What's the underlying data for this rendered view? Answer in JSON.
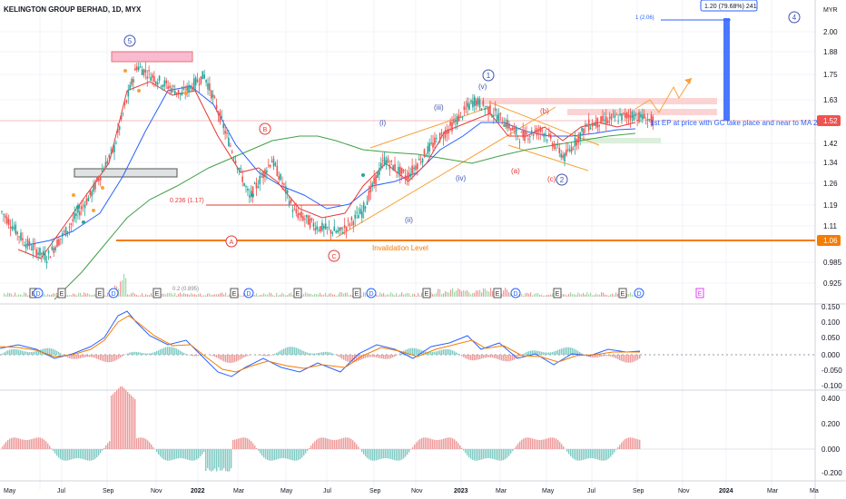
{
  "header": {
    "title": "KELINGTON GROUP BERHAD, 1D, MYX",
    "currency": "MYR"
  },
  "price_axis": {
    "ticks": [
      "2.00",
      "1.88",
      "1.75",
      "1.63",
      "1.52",
      "1.42",
      "1.34",
      "1.26",
      "1.19",
      "1.11",
      "0.985",
      "0.925"
    ],
    "current": "1.52",
    "invalidation": "1.06"
  },
  "time_axis": [
    "May",
    "Jul",
    "Sep",
    "Nov",
    "2022",
    "Mar",
    "May",
    "Jul",
    "Sep",
    "Nov",
    "2023",
    "Mar",
    "May",
    "Jul",
    "Sep",
    "Nov",
    "2024",
    "Mar",
    "Ma"
  ],
  "macd_axis": [
    "0.150",
    "0.100",
    "0.050",
    "0.000",
    "-0.050",
    "-0.100"
  ],
  "hist_axis": [
    "0.400",
    "0.200",
    "0.000",
    "-0.200"
  ],
  "annotations": {
    "wave5": "5",
    "wave4": "4",
    "wave1": "1",
    "wave2": "2",
    "waveA": "A",
    "waveB": "B",
    "waveC": "C",
    "sub_i": "(i)",
    "sub_ii": "(ii)",
    "sub_iii": "(iii)",
    "sub_iv": "(iv)",
    "sub_v": "(v)",
    "sub_a": "(a)",
    "sub_b": "(b)",
    "sub_c": "(c)",
    "fib_label": "0.236 (1.17)",
    "invalidation_label": "Invalidation Level",
    "ep_note": "1st EP at price with GC take place and near to MA 20",
    "measure_label": "1.20 (79.68%) 241",
    "target_label": "1 (2.06)",
    "vol_label": "0.2 (0.895)",
    "earnings_marker": "E",
    "dividend_marker": "D"
  },
  "chart_data": {
    "type": "candlestick",
    "title": "KELINGTON GROUP BERHAD, 1D, MYX",
    "ylabel": "MYR",
    "ylim": [
      0.88,
      2.08
    ],
    "x_range": [
      "2021-04",
      "2024-04"
    ],
    "price_path": [
      {
        "date": "2021-04",
        "close": 1.15
      },
      {
        "date": "2021-05",
        "close": 1.05
      },
      {
        "date": "2021-06",
        "close": 1.0
      },
      {
        "date": "2021-07",
        "close": 1.1
      },
      {
        "date": "2021-08",
        "close": 1.22
      },
      {
        "date": "2021-09",
        "close": 1.4
      },
      {
        "date": "2021-10",
        "close": 1.8
      },
      {
        "date": "2021-11",
        "close": 1.72
      },
      {
        "date": "2021-12",
        "close": 1.65
      },
      {
        "date": "2022-01",
        "close": 1.75
      },
      {
        "date": "2022-02",
        "close": 1.45
      },
      {
        "date": "2022-03",
        "close": 1.2
      },
      {
        "date": "2022-04",
        "close": 1.35
      },
      {
        "date": "2022-05",
        "close": 1.15
      },
      {
        "date": "2022-06",
        "close": 1.1
      },
      {
        "date": "2022-07",
        "close": 1.08
      },
      {
        "date": "2022-08",
        "close": 1.15
      },
      {
        "date": "2022-09",
        "close": 1.35
      },
      {
        "date": "2022-10",
        "close": 1.28
      },
      {
        "date": "2022-11",
        "close": 1.4
      },
      {
        "date": "2022-12",
        "close": 1.5
      },
      {
        "date": "2023-01",
        "close": 1.62
      },
      {
        "date": "2023-02",
        "close": 1.55
      },
      {
        "date": "2023-03",
        "close": 1.45
      },
      {
        "date": "2023-04",
        "close": 1.48
      },
      {
        "date": "2023-05",
        "close": 1.36
      },
      {
        "date": "2023-06",
        "close": 1.5
      },
      {
        "date": "2023-07",
        "close": 1.53
      },
      {
        "date": "2023-08",
        "close": 1.55
      },
      {
        "date": "2023-09",
        "close": 1.52
      }
    ],
    "indicators": [
      "MA 20",
      "MA 50",
      "MA 200",
      "MACD",
      "MACD Histogram"
    ],
    "levels": {
      "invalidation": 1.06,
      "fib_0236": 1.17,
      "target": 2.06
    },
    "grid": true
  },
  "colors": {
    "up": "#26a69a",
    "down": "#ef5350",
    "ma20": "#ef5350",
    "ma50": "#2962ff",
    "ma200": "#43a047",
    "invalidation": "#f57c00",
    "wedge": "#f7a23b"
  }
}
